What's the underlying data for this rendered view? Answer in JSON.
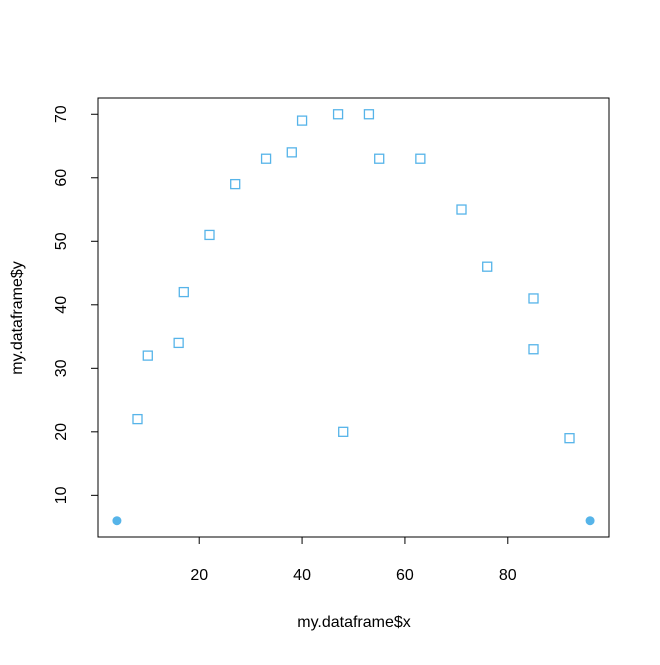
{
  "chart_data": {
    "type": "scatter",
    "x_label": "my.dataframe$x",
    "y_label": "my.dataframe$y",
    "xlim": [
      0.32,
      99.68
    ],
    "ylim": [
      3.44,
      72.56
    ],
    "xticks": [
      20,
      40,
      60,
      80
    ],
    "yticks": [
      10,
      20,
      30,
      40,
      50,
      60,
      70
    ],
    "series": [
      {
        "color": "#56b4e9",
        "marker": "open-square",
        "x": [
          8,
          10,
          16,
          17,
          22,
          27,
          33,
          38,
          40,
          47,
          48,
          53,
          55,
          63,
          71,
          76,
          85,
          85,
          92
        ],
        "values": [
          22,
          32,
          34,
          42,
          51,
          59,
          63,
          64,
          69,
          70,
          20,
          70,
          63,
          63,
          55,
          46,
          41,
          33,
          19
        ]
      },
      {
        "color": "#56b4e9",
        "marker": "filled-circle",
        "x": [
          4,
          96
        ],
        "values": [
          6,
          6
        ]
      }
    ]
  }
}
